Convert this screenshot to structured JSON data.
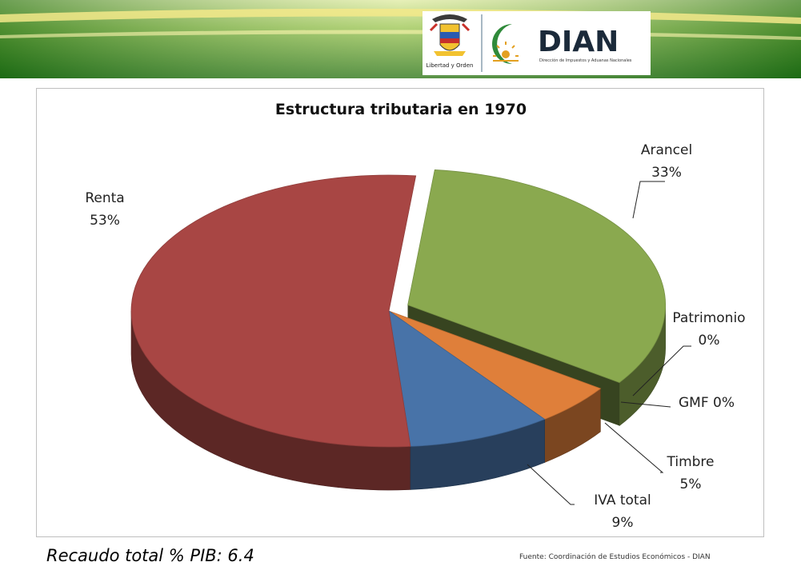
{
  "header": {
    "shield_icon": "colombia-coat-of-arms",
    "motto": "Libertad y Orden",
    "sun_icon": "dian-sun-logo",
    "brand": "DIAN",
    "brand_subtitle": "Dirección de Impuestos y Aduanas Nacionales",
    "colors": {
      "green_dark": "#1f6e14",
      "green_light": "#c7e07a",
      "yellow": "#f5e27a",
      "brand_green": "#2f8a3a",
      "brand_text": "#1b2a3a"
    }
  },
  "chart_data": {
    "type": "pie",
    "title": "Estructura tributaria en 1970",
    "categories": [
      "Arancel",
      "Patrimonio",
      "GMF",
      "Timbre",
      "IVA total",
      "Renta"
    ],
    "values": [
      33,
      0,
      0,
      5,
      9,
      53
    ],
    "labels": [
      {
        "name": "Arancel",
        "value": "33%"
      },
      {
        "name": "Patrimonio",
        "value": "0%"
      },
      {
        "name": "GMF",
        "value": "0%"
      },
      {
        "name": "Timbre",
        "value": "5%"
      },
      {
        "name": "IVA total",
        "value": "9%"
      },
      {
        "name": "Renta",
        "value": "53%"
      }
    ],
    "exploded": "Arancel",
    "colors": {
      "Arancel": "#8aa94f",
      "Patrimonio": "#d9a75a",
      "GMF": "#c98a3a",
      "Timbre": "#df7f3a",
      "IVA total": "#4873a8",
      "Renta": "#a84644"
    },
    "style": "3d"
  },
  "footer": {
    "total_label": "Recaudo total % PIB: 6.4",
    "source": "Fuente: Coordinación de Estudios Económicos - DIAN"
  }
}
